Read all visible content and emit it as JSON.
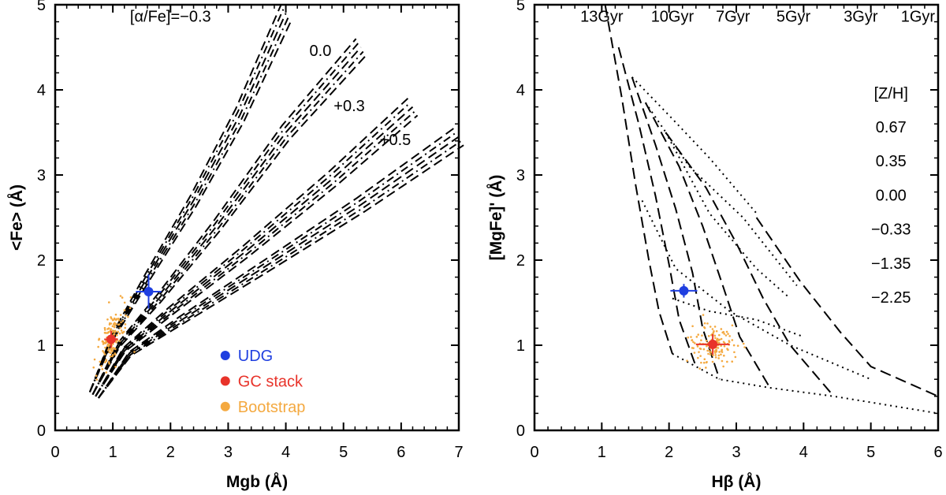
{
  "chart_data": [
    {
      "type": "line",
      "panel": "left",
      "xlabel": "Mgb (Å)",
      "ylabel": "<Fe> (Å)",
      "xlim": [
        0,
        7
      ],
      "ylim": [
        0,
        5
      ],
      "xticks": [
        "0",
        "1",
        "2",
        "3",
        "4",
        "5",
        "6",
        "7"
      ],
      "yticks": [
        "0",
        "1",
        "2",
        "3",
        "4",
        "5"
      ],
      "annotations": [
        {
          "text": "[α/Fe]=−0.3",
          "x": 2.0,
          "y": 4.8
        },
        {
          "text": "0.0",
          "x": 4.6,
          "y": 4.4
        },
        {
          "text": "+0.3",
          "x": 5.1,
          "y": 3.75
        },
        {
          "text": "+0.5",
          "x": 5.9,
          "y": 3.35
        }
      ],
      "model_tracks": [
        {
          "alpha_fe": "−0.3",
          "x": [
            0.6,
            1.0,
            1.6,
            2.4,
            3.2,
            4.0
          ],
          "y": [
            0.45,
            1.1,
            1.8,
            2.7,
            3.7,
            4.9
          ]
        },
        {
          "alpha_fe": "0.0",
          "x": [
            0.65,
            1.1,
            1.8,
            2.8,
            4.0,
            5.3
          ],
          "y": [
            0.42,
            1.0,
            1.55,
            2.4,
            3.5,
            4.5
          ]
        },
        {
          "alpha_fe": "+0.3",
          "x": [
            0.7,
            1.2,
            2.0,
            3.3,
            4.8,
            6.2
          ],
          "y": [
            0.4,
            0.95,
            1.4,
            2.1,
            2.95,
            3.8
          ]
        },
        {
          "alpha_fe": "+0.5",
          "x": [
            0.75,
            1.3,
            2.2,
            3.7,
            5.3,
            7.0
          ],
          "y": [
            0.38,
            0.9,
            1.3,
            1.95,
            2.65,
            3.45
          ]
        }
      ],
      "series": [
        {
          "name": "UDG",
          "color": "#1f3fe0",
          "x": 1.62,
          "y": 1.63,
          "xerr": 0.22,
          "yerr": 0.2
        },
        {
          "name": "GC stack",
          "color": "#e8332a",
          "x": 0.97,
          "y": 1.07,
          "xerr": 0.12,
          "yerr": 0.1
        },
        {
          "name": "Bootstrap",
          "color": "#f4a940",
          "center": [
            0.97,
            1.07
          ],
          "spread": [
            0.25,
            0.3
          ]
        }
      ],
      "legend": {
        "placement": "lower-right",
        "entries": [
          {
            "label": "UDG",
            "color": "#1f3fe0"
          },
          {
            "label": "GC stack",
            "color": "#e8332a"
          },
          {
            "label": "Bootstrap",
            "color": "#f4a940"
          }
        ]
      }
    },
    {
      "type": "line",
      "panel": "right",
      "xlabel": "Hβ (Å)",
      "ylabel": "[MgFe]' (Å)",
      "xlim": [
        0,
        6
      ],
      "ylim": [
        0,
        5
      ],
      "xticks": [
        "0",
        "1",
        "2",
        "3",
        "4",
        "5",
        "6"
      ],
      "yticks": [
        "0",
        "1",
        "2",
        "3",
        "4",
        "5"
      ],
      "age_labels": [
        "13Gyr",
        "10Gyr",
        "7Gyr",
        "5Gyr",
        "3Gyr",
        "1Gyr"
      ],
      "metallicity_title": "[Z/H]",
      "metallicity_labels": [
        "0.67",
        "0.35",
        "0.00",
        "−0.33",
        "−1.35",
        "−2.25"
      ],
      "iso_age_lines": [
        {
          "age": "13Gyr",
          "x": [
            1.05,
            1.3,
            1.5,
            1.7,
            1.85,
            2.05
          ],
          "y": [
            5.0,
            3.9,
            2.9,
            2.0,
            1.4,
            0.9
          ]
        },
        {
          "age": "10Gyr",
          "x": [
            1.25,
            1.55,
            1.8,
            2.0,
            2.15,
            2.4
          ],
          "y": [
            4.5,
            3.6,
            2.75,
            1.95,
            1.3,
            0.75
          ]
        },
        {
          "age": "7Gyr",
          "x": [
            1.45,
            1.8,
            2.1,
            2.35,
            2.5,
            2.75
          ],
          "y": [
            4.15,
            3.35,
            2.6,
            1.85,
            1.2,
            0.6
          ]
        },
        {
          "age": "5Gyr",
          "x": [
            1.65,
            2.15,
            2.5,
            2.8,
            3.05,
            3.5
          ],
          "y": [
            3.85,
            3.1,
            2.4,
            1.7,
            1.1,
            0.5
          ]
        },
        {
          "age": "3Gyr",
          "x": [
            1.95,
            2.55,
            3.0,
            3.4,
            3.8,
            4.45
          ],
          "y": [
            3.5,
            2.85,
            2.2,
            1.55,
            1.0,
            0.4
          ]
        },
        {
          "age": "1Gyr",
          "x": [
            3.3,
            3.95,
            4.55,
            5.0,
            6.0
          ],
          "y": [
            2.5,
            1.75,
            1.15,
            0.75,
            0.4
          ]
        }
      ],
      "iso_metal_lines": [
        {
          "z": "0.67",
          "x": [
            1.45,
            2.0,
            2.6,
            3.3
          ],
          "y": [
            4.15,
            3.7,
            3.2,
            2.55
          ]
        },
        {
          "z": "0.35",
          "x": [
            1.65,
            2.3,
            3.1,
            3.9
          ],
          "y": [
            3.85,
            3.1,
            2.5,
            1.7
          ]
        },
        {
          "z": "0.00",
          "x": [
            1.95,
            2.6,
            3.3,
            3.8
          ],
          "y": [
            3.5,
            2.55,
            1.9,
            1.55
          ]
        },
        {
          "z": "−0.33",
          "x": [
            2.05,
            2.6,
            3.3,
            4.0
          ],
          "y": [
            1.55,
            1.4,
            1.3,
            1.1
          ]
        },
        {
          "z": "−1.35",
          "x": [
            1.6,
            2.1,
            2.9,
            3.8,
            5.0
          ],
          "y": [
            2.7,
            1.9,
            1.4,
            1.0,
            0.6
          ]
        },
        {
          "z": "−2.25",
          "x": [
            2.05,
            2.75,
            3.5,
            4.45,
            6.0
          ],
          "y": [
            0.9,
            0.6,
            0.5,
            0.4,
            0.2
          ]
        }
      ],
      "series": [
        {
          "name": "UDG",
          "color": "#1f3fe0",
          "x": 2.22,
          "y": 1.64,
          "xerr": 0.2,
          "yerr": 0.08
        },
        {
          "name": "GC stack",
          "color": "#e8332a",
          "x": 2.65,
          "y": 1.01,
          "xerr": 0.25,
          "yerr": 0.12
        },
        {
          "name": "Bootstrap",
          "color": "#f4a940",
          "center": [
            2.65,
            1.01
          ],
          "spread": [
            0.35,
            0.22
          ]
        }
      ]
    }
  ]
}
